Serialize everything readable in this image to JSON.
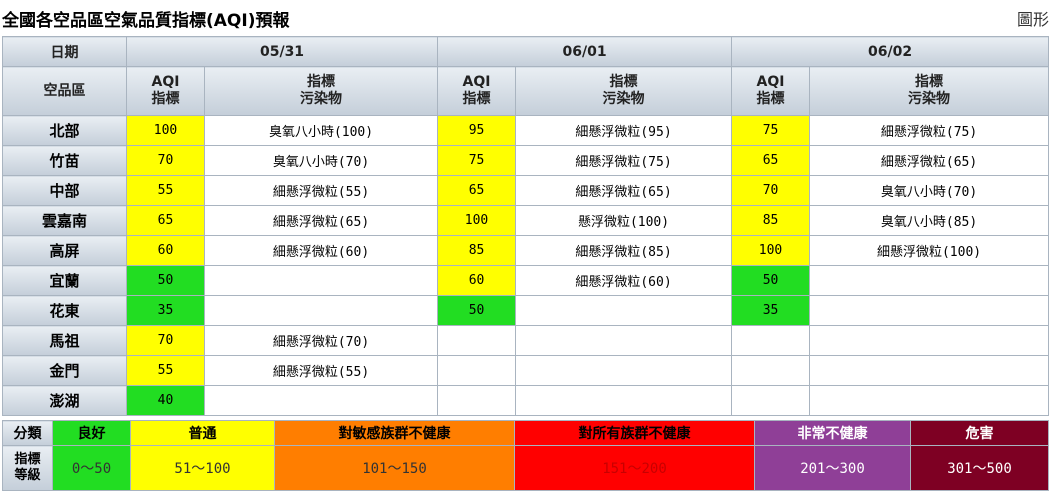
{
  "page": {
    "title": "全國各空品區空氣品質指標(AQI)預報",
    "chart_link": "圖形"
  },
  "table": {
    "date_label": "日期",
    "region_label": "空品區",
    "aqi_label_1": "AQI",
    "aqi_label_2": "指標",
    "pollutant_label_1": "指標",
    "pollutant_label_2": "污染物",
    "dates": [
      "05/31",
      "06/01",
      "06/02"
    ],
    "rows": [
      {
        "region": "北部",
        "d1_aqi": "100",
        "d1_pol": "臭氧八小時(100)",
        "d2_aqi": "95",
        "d2_pol": "細懸浮微粒(95)",
        "d3_aqi": "75",
        "d3_pol": "細懸浮微粒(75)"
      },
      {
        "region": "竹苗",
        "d1_aqi": "70",
        "d1_pol": "臭氧八小時(70)",
        "d2_aqi": "75",
        "d2_pol": "細懸浮微粒(75)",
        "d3_aqi": "65",
        "d3_pol": "細懸浮微粒(65)"
      },
      {
        "region": "中部",
        "d1_aqi": "55",
        "d1_pol": "細懸浮微粒(55)",
        "d2_aqi": "65",
        "d2_pol": "細懸浮微粒(65)",
        "d3_aqi": "70",
        "d3_pol": "臭氧八小時(70)"
      },
      {
        "region": "雲嘉南",
        "d1_aqi": "65",
        "d1_pol": "細懸浮微粒(65)",
        "d2_aqi": "100",
        "d2_pol": "懸浮微粒(100)",
        "d3_aqi": "85",
        "d3_pol": "臭氧八小時(85)"
      },
      {
        "region": "高屏",
        "d1_aqi": "60",
        "d1_pol": "細懸浮微粒(60)",
        "d2_aqi": "85",
        "d2_pol": "細懸浮微粒(85)",
        "d3_aqi": "100",
        "d3_pol": "細懸浮微粒(100)"
      },
      {
        "region": "宜蘭",
        "d1_aqi": "50",
        "d1_pol": "",
        "d2_aqi": "60",
        "d2_pol": "細懸浮微粒(60)",
        "d3_aqi": "50",
        "d3_pol": ""
      },
      {
        "region": "花東",
        "d1_aqi": "35",
        "d1_pol": "",
        "d2_aqi": "50",
        "d2_pol": "",
        "d3_aqi": "35",
        "d3_pol": ""
      },
      {
        "region": "馬祖",
        "d1_aqi": "70",
        "d1_pol": "細懸浮微粒(70)",
        "d2_aqi": "",
        "d2_pol": "",
        "d3_aqi": "",
        "d3_pol": ""
      },
      {
        "region": "金門",
        "d1_aqi": "55",
        "d1_pol": "細懸浮微粒(55)",
        "d2_aqi": "",
        "d2_pol": "",
        "d3_aqi": "",
        "d3_pol": ""
      },
      {
        "region": "澎湖",
        "d1_aqi": "40",
        "d1_pol": "",
        "d2_aqi": "",
        "d2_pol": "",
        "d3_aqi": "",
        "d3_pol": ""
      }
    ]
  },
  "legend": {
    "category_label": "分類",
    "level_label_1": "指標",
    "level_label_2": "等級",
    "categories": [
      {
        "name": "良好",
        "range": "0～50",
        "color": "#22dd22",
        "text_color": "#333333"
      },
      {
        "name": "普通",
        "range": "51～100",
        "color": "#ffff00",
        "text_color": "#333333"
      },
      {
        "name": "對敏感族群不健康",
        "range": "101～150",
        "color": "#ff7e00",
        "text_color": "#333333"
      },
      {
        "name": "對所有族群不健康",
        "range": "151～200",
        "color": "#ff0000",
        "text_color": "#c80000"
      },
      {
        "name": "非常不健康",
        "range": "201～300",
        "color": "#8f3f97",
        "text_color": "#ffffff"
      },
      {
        "name": "危害",
        "range": "301～500",
        "color": "#7e0023",
        "text_color": "#ffffff"
      }
    ]
  }
}
